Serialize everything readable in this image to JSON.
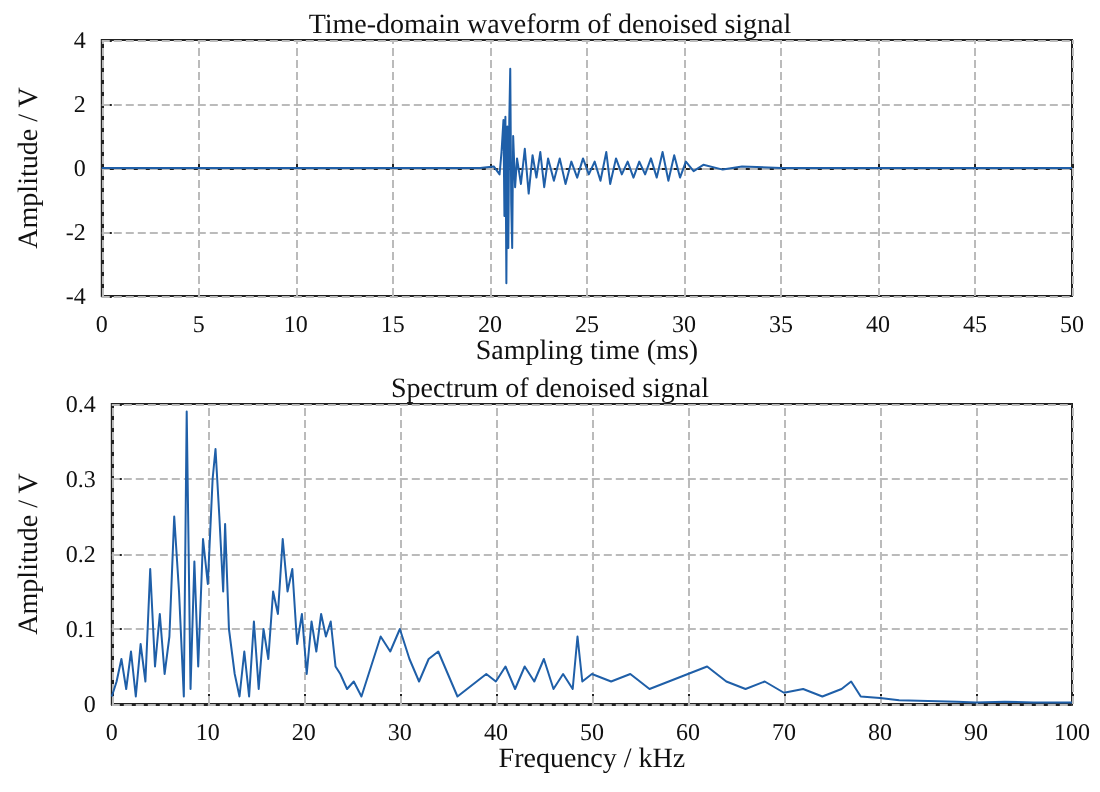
{
  "chart_data": [
    {
      "type": "line",
      "title": "Time-domain waveform of denoised signal",
      "xlabel": "Sampling time (ms)",
      "ylabel": "Amplitude / V",
      "xlim": [
        0,
        50
      ],
      "xticks": [
        0,
        5,
        10,
        15,
        20,
        25,
        30,
        35,
        40,
        45,
        50
      ],
      "ylim": [
        -4,
        4
      ],
      "yticks": [
        -4,
        -2,
        0,
        2,
        4
      ],
      "grid": true,
      "marker": "none",
      "line_style": "solid",
      "series": [
        {
          "color": "#1f5fa8",
          "x": [
            0,
            5,
            10,
            15,
            19.5,
            20.2,
            20.5,
            20.6,
            20.7,
            20.75,
            20.8,
            20.85,
            20.9,
            20.95,
            21.0,
            21.05,
            21.1,
            21.15,
            21.2,
            21.3,
            21.4,
            21.6,
            21.8,
            22.0,
            22.2,
            22.4,
            22.6,
            22.8,
            23.0,
            23.3,
            23.6,
            23.9,
            24.2,
            24.5,
            24.8,
            25.1,
            25.4,
            25.7,
            26.0,
            26.2,
            26.5,
            26.8,
            27.1,
            27.4,
            27.7,
            28.0,
            28.3,
            28.6,
            28.9,
            29.2,
            29.5,
            29.8,
            30.1,
            30.5,
            31,
            32,
            33,
            35,
            40,
            45,
            50
          ],
          "values": [
            0,
            0,
            0,
            0,
            0,
            0.05,
            -0.2,
            0.5,
            1.5,
            -1.5,
            1.6,
            -3.6,
            1.3,
            -2.5,
            1.5,
            3.1,
            -1.1,
            -2.5,
            1.0,
            -0.6,
            0.3,
            -0.5,
            0.6,
            -0.8,
            0.4,
            -0.3,
            0.5,
            -0.6,
            0.3,
            -0.4,
            0.3,
            -0.5,
            0.2,
            -0.3,
            0.3,
            -0.2,
            0.2,
            -0.4,
            0.5,
            -0.5,
            0.3,
            -0.2,
            0.2,
            -0.3,
            0.2,
            -0.2,
            0.3,
            -0.3,
            0.5,
            -0.4,
            0.4,
            -0.3,
            0.2,
            -0.1,
            0.1,
            -0.05,
            0.05,
            0,
            0,
            0,
            0
          ]
        }
      ]
    },
    {
      "type": "line",
      "title": "Spectrum of denoised signal",
      "xlabel": "Frequency / kHz",
      "ylabel": "Amplitude / V",
      "xlim": [
        0,
        100
      ],
      "xticks": [
        0,
        10,
        20,
        30,
        40,
        50,
        60,
        70,
        80,
        90,
        100
      ],
      "ylim": [
        0,
        0.4
      ],
      "yticks": [
        0,
        0.1,
        0.2,
        0.3,
        0.4
      ],
      "grid": true,
      "marker": "none",
      "line_style": "solid",
      "series": [
        {
          "color": "#1f5fa8",
          "x": [
            0,
            0.5,
            1,
            1.5,
            2,
            2.5,
            3,
            3.5,
            4,
            4.5,
            5,
            5.5,
            6,
            6.5,
            7,
            7.5,
            7.8,
            8.2,
            8.6,
            9,
            9.5,
            10,
            10.5,
            10.8,
            11.2,
            11.6,
            11.8,
            12.2,
            12.8,
            13.3,
            13.8,
            14.3,
            14.8,
            15.3,
            15.8,
            16.3,
            16.8,
            17.3,
            17.8,
            18.3,
            18.8,
            19.3,
            19.8,
            20.3,
            20.8,
            21.3,
            21.8,
            22.3,
            22.8,
            23.3,
            23.8,
            24.5,
            25.2,
            26,
            27,
            28,
            29,
            30,
            31,
            32,
            33,
            34,
            35,
            36,
            37,
            38,
            39,
            40,
            41,
            42,
            43,
            44,
            45,
            46,
            47,
            48,
            48.5,
            49,
            50,
            52,
            54,
            56,
            58,
            60,
            62,
            64,
            66,
            68,
            70,
            72,
            74,
            76,
            77,
            78,
            80,
            82,
            85,
            88,
            90,
            93,
            96,
            100
          ],
          "values": [
            0.01,
            0.03,
            0.06,
            0.02,
            0.07,
            0.01,
            0.08,
            0.03,
            0.18,
            0.05,
            0.12,
            0.04,
            0.09,
            0.25,
            0.15,
            0.01,
            0.39,
            0.02,
            0.19,
            0.05,
            0.22,
            0.16,
            0.3,
            0.34,
            0.25,
            0.15,
            0.24,
            0.1,
            0.04,
            0.01,
            0.07,
            0.01,
            0.11,
            0.02,
            0.1,
            0.06,
            0.15,
            0.12,
            0.22,
            0.15,
            0.18,
            0.08,
            0.12,
            0.04,
            0.11,
            0.07,
            0.12,
            0.09,
            0.11,
            0.05,
            0.04,
            0.02,
            0.03,
            0.01,
            0.05,
            0.09,
            0.07,
            0.1,
            0.06,
            0.03,
            0.06,
            0.07,
            0.04,
            0.01,
            0.02,
            0.03,
            0.04,
            0.03,
            0.05,
            0.02,
            0.05,
            0.03,
            0.06,
            0.02,
            0.04,
            0.02,
            0.09,
            0.03,
            0.04,
            0.03,
            0.04,
            0.02,
            0.03,
            0.04,
            0.05,
            0.03,
            0.02,
            0.03,
            0.015,
            0.02,
            0.01,
            0.02,
            0.03,
            0.01,
            0.008,
            0.005,
            0.004,
            0.003,
            0.002,
            0.003,
            0.002,
            0.002
          ]
        }
      ]
    }
  ]
}
